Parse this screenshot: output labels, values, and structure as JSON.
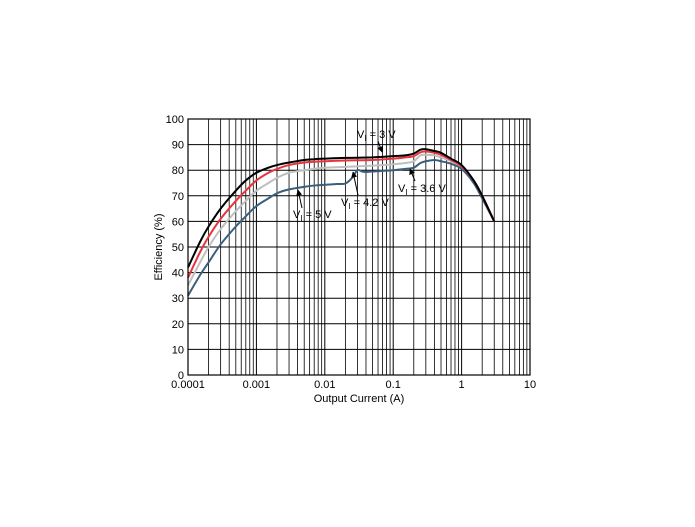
{
  "chart_data": {
    "type": "line",
    "xlabel": "Output Current (A)",
    "ylabel": "Efficiency (%)",
    "x_scale": "log",
    "xlim": [
      0.0001,
      10
    ],
    "ylim": [
      0,
      100
    ],
    "grid": true,
    "x_ticks": [
      0.0001,
      0.001,
      0.01,
      0.1,
      1,
      10
    ],
    "x_tick_labels": [
      "0.0001",
      "0.001",
      "0.01",
      "0.1",
      "1",
      "10"
    ],
    "y_ticks": [
      0,
      10,
      20,
      30,
      40,
      50,
      60,
      70,
      80,
      90,
      100
    ],
    "y_tick_labels": [
      "0",
      "10",
      "20",
      "30",
      "40",
      "50",
      "60",
      "70",
      "80",
      "90",
      "100"
    ],
    "series": [
      {
        "color": "#000000",
        "x": [
          0.0001,
          0.00015,
          0.0002,
          0.0003,
          0.0005,
          0.0007,
          0.001,
          0.0015,
          0.002,
          0.003,
          0.005,
          0.007,
          0.01,
          0.02,
          0.05,
          0.1,
          0.15,
          0.2,
          0.25,
          0.3,
          0.4,
          0.5,
          0.7,
          1,
          1.5,
          2,
          3
        ],
        "y": [
          42,
          52,
          58,
          65,
          72,
          76,
          79,
          81,
          82,
          83,
          84,
          84.3,
          84.5,
          84.8,
          85,
          85.5,
          85.8,
          86.5,
          88,
          88.2,
          87.5,
          86.8,
          84.5,
          82,
          76,
          70,
          60
        ]
      },
      {
        "color": "#e8343c",
        "x": [
          0.0001,
          0.00015,
          0.0002,
          0.0003,
          0.0005,
          0.0007,
          0.001,
          0.0015,
          0.002,
          0.003,
          0.005,
          0.007,
          0.01,
          0.02,
          0.05,
          0.1,
          0.15,
          0.2,
          0.25,
          0.3,
          0.4,
          0.5,
          0.7,
          1,
          1.5,
          2,
          3
        ],
        "y": [
          38,
          48,
          54,
          61,
          68,
          72,
          76,
          79,
          80.5,
          82,
          83,
          83.3,
          83.5,
          83.8,
          84,
          84.5,
          85,
          85.5,
          87,
          87.3,
          86.8,
          86,
          84,
          81.5,
          76,
          70,
          60
        ]
      },
      {
        "color": "#bfbfbf",
        "x": [
          0.0001,
          0.00015,
          0.0002,
          0.0003,
          0.0005,
          0.0007,
          0.001,
          0.0015,
          0.002,
          0.003,
          0.005,
          0.007,
          0.01,
          0.02,
          0.05,
          0.1,
          0.15,
          0.2,
          0.25,
          0.3,
          0.4,
          0.5,
          0.7,
          1,
          1.5,
          2,
          3
        ],
        "y": [
          35,
          44,
          50,
          57,
          64,
          68,
          72,
          75,
          77,
          79,
          80,
          80.5,
          81,
          81.3,
          81.8,
          82.3,
          82.8,
          83.5,
          85.8,
          86,
          85.8,
          85,
          83.5,
          81,
          75.5,
          69.5,
          60
        ]
      },
      {
        "color": "#3a5f7d",
        "x": [
          0.0001,
          0.00015,
          0.0002,
          0.0003,
          0.0005,
          0.0007,
          0.001,
          0.0015,
          0.002,
          0.003,
          0.005,
          0.007,
          0.01,
          0.015,
          0.02,
          0.025,
          0.03,
          0.035,
          0.04,
          0.05,
          0.1,
          0.15,
          0.2,
          0.25,
          0.3,
          0.4,
          0.5,
          0.7,
          1,
          1.5,
          2,
          3
        ],
        "y": [
          31,
          39,
          44,
          51,
          58,
          62,
          66,
          69,
          71,
          72.5,
          73.5,
          74,
          74.3,
          74.6,
          74.8,
          77,
          80,
          79.5,
          79.3,
          79.5,
          80,
          80.5,
          81,
          82.8,
          83.5,
          84,
          83.5,
          82.5,
          80.5,
          75,
          69,
          60
        ]
      }
    ],
    "annotations": [
      {
        "main": "V",
        "sub": "I",
        "value": " = 3 V"
      },
      {
        "main": "V",
        "sub": "I",
        "value": " = 3.6 V"
      },
      {
        "main": "V",
        "sub": "I",
        "value": " = 4.2 V"
      },
      {
        "main": "V",
        "sub": "I",
        "value": " = 5 V"
      }
    ]
  }
}
